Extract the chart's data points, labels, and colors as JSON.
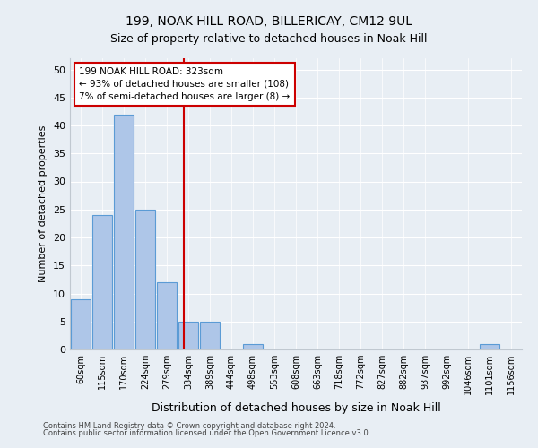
{
  "title1": "199, NOAK HILL ROAD, BILLERICAY, CM12 9UL",
  "title2": "Size of property relative to detached houses in Noak Hill",
  "xlabel": "Distribution of detached houses by size in Noak Hill",
  "ylabel": "Number of detached properties",
  "bar_labels": [
    "60sqm",
    "115sqm",
    "170sqm",
    "224sqm",
    "279sqm",
    "334sqm",
    "389sqm",
    "444sqm",
    "498sqm",
    "553sqm",
    "608sqm",
    "663sqm",
    "718sqm",
    "772sqm",
    "827sqm",
    "882sqm",
    "937sqm",
    "992sqm",
    "1046sqm",
    "1101sqm",
    "1156sqm"
  ],
  "bar_values": [
    9,
    24,
    42,
    25,
    12,
    5,
    5,
    0,
    1,
    0,
    0,
    0,
    0,
    0,
    0,
    0,
    0,
    0,
    0,
    1,
    0
  ],
  "bar_color": "#aec6e8",
  "bar_edge_color": "#5b9bd5",
  "bg_color": "#e8eef4",
  "grid_color": "#ffffff",
  "marker_label": "199 NOAK HILL ROAD: 323sqm",
  "annotation_line1": "← 93% of detached houses are smaller (108)",
  "annotation_line2": "7% of semi-detached houses are larger (8) →",
  "annotation_box_color": "#ffffff",
  "annotation_border_color": "#cc0000",
  "vline_color": "#cc0000",
  "vline_x": 4.8,
  "ylim": [
    0,
    52
  ],
  "yticks": [
    0,
    5,
    10,
    15,
    20,
    25,
    30,
    35,
    40,
    45,
    50
  ],
  "footer1": "Contains HM Land Registry data © Crown copyright and database right 2024.",
  "footer2": "Contains public sector information licensed under the Open Government Licence v3.0."
}
